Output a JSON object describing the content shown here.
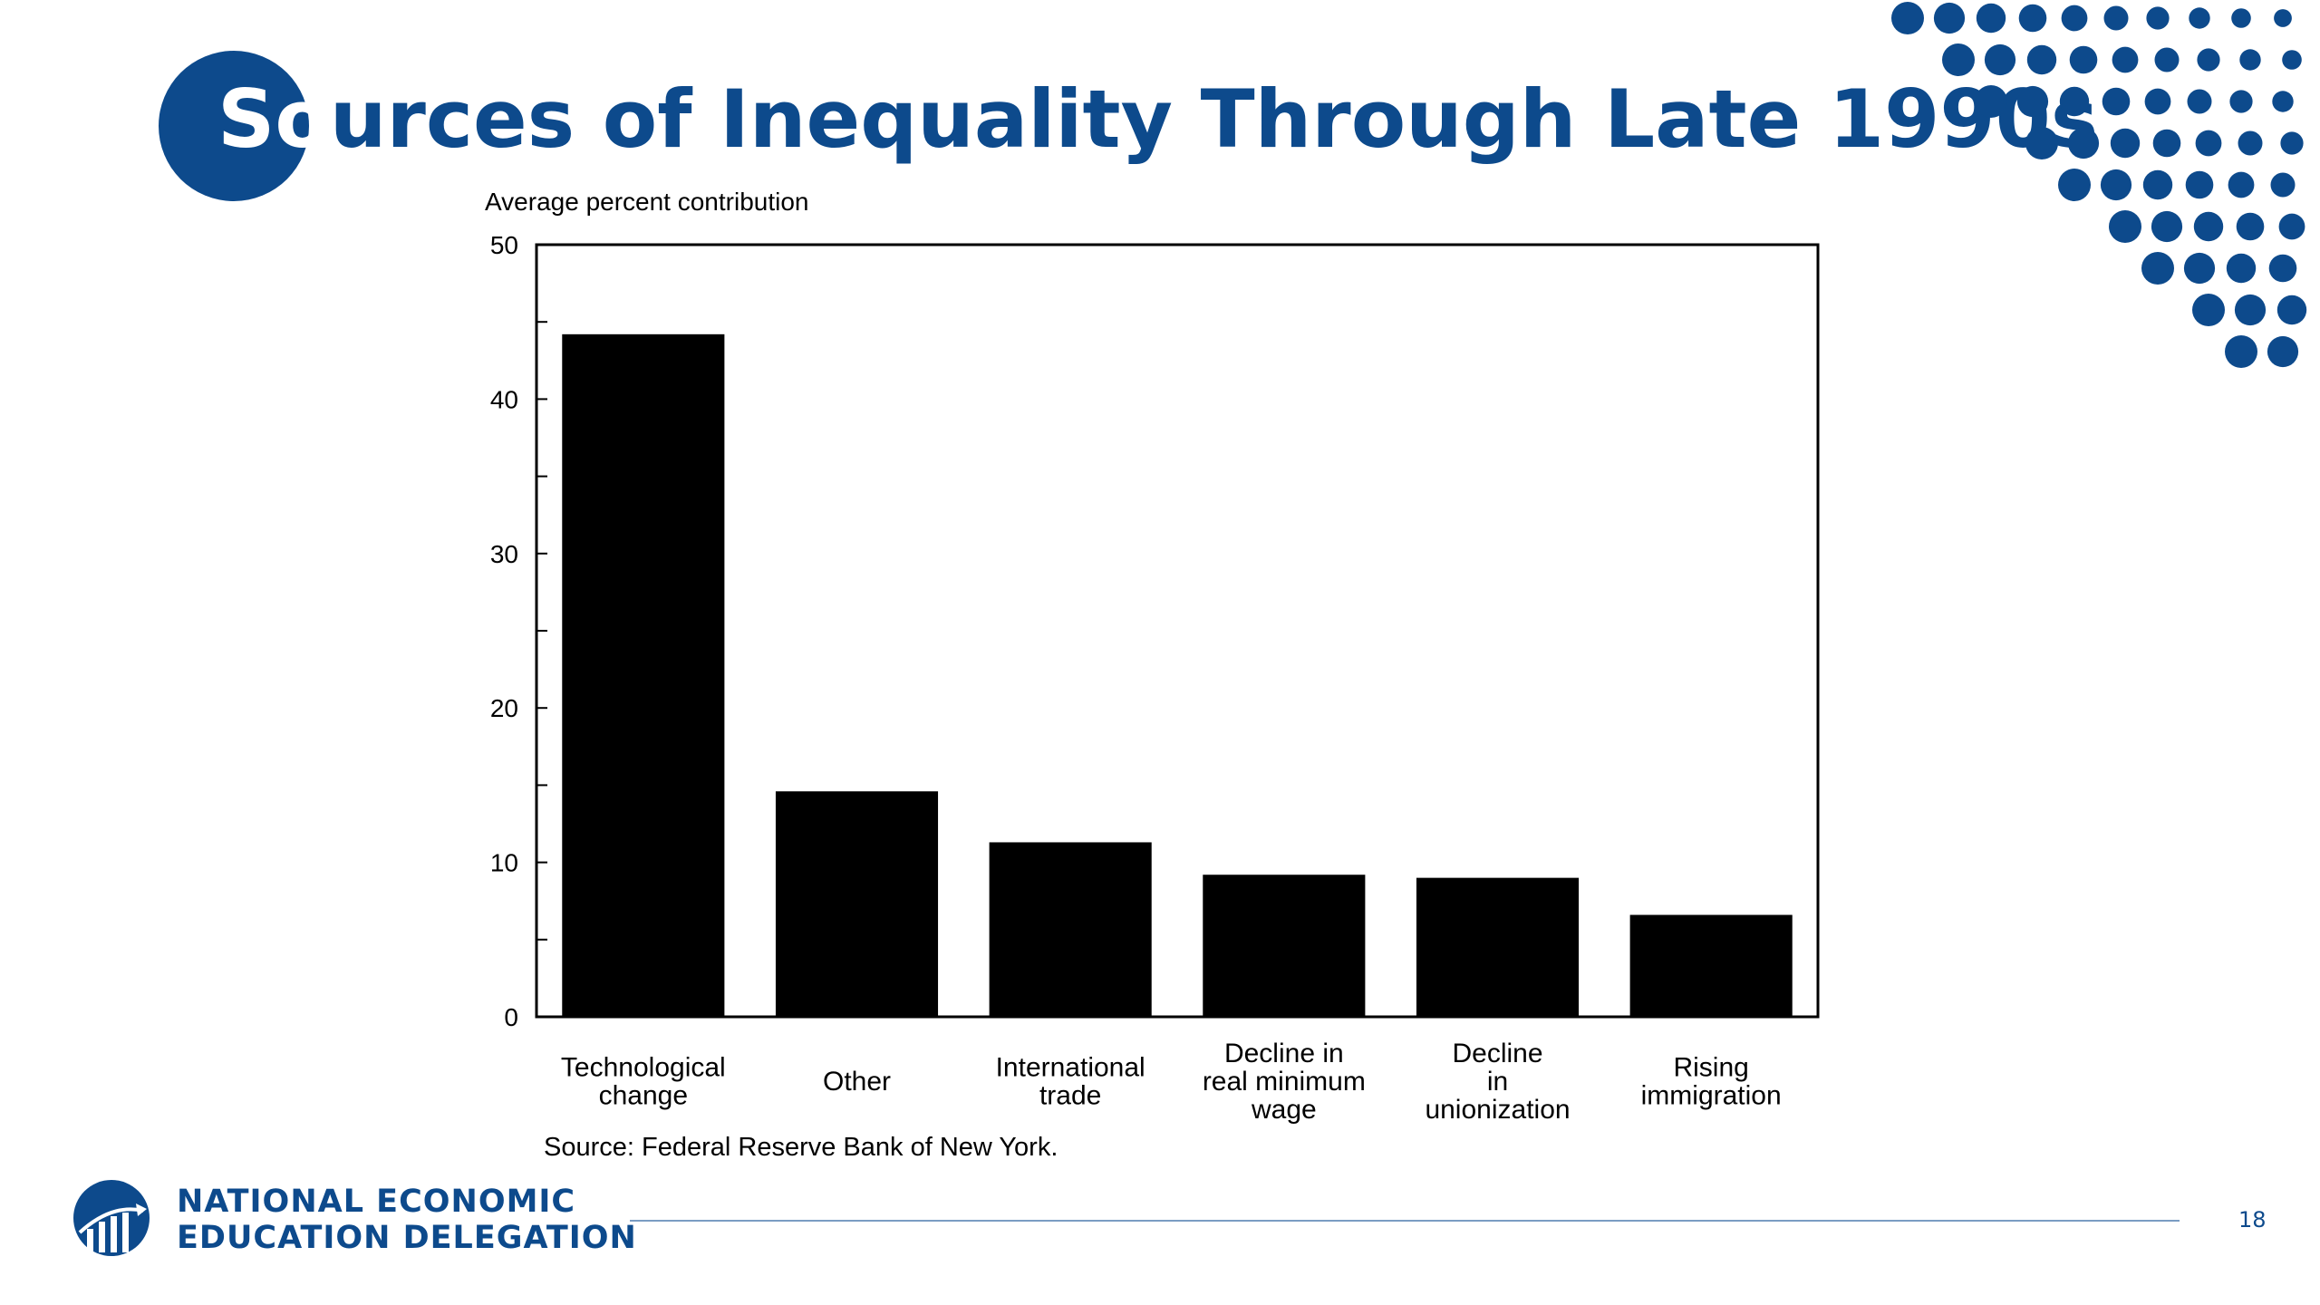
{
  "slide": {
    "title_lead": "So",
    "title_rest": "urces of Inequality Through Late 1990s",
    "page_number": "18",
    "brand_color": "#0d4a8c"
  },
  "footer": {
    "org_line1": "NATIONAL ECONOMIC",
    "org_line2": "EDUCATION DELEGATION",
    "logo_icon": "chart-in-globe-icon"
  },
  "chart_data": {
    "type": "bar",
    "ylabel": "Average percent contribution",
    "ylim": [
      0,
      50
    ],
    "yticks": [
      0,
      10,
      20,
      30,
      40,
      50
    ],
    "categories": [
      [
        "Technological",
        "change"
      ],
      [
        "Other"
      ],
      [
        "International",
        "trade"
      ],
      [
        "Decline in",
        "real minimum",
        "wage"
      ],
      [
        "Decline",
        "in",
        "unionization"
      ],
      [
        "Rising",
        "immigration"
      ]
    ],
    "values": [
      44.2,
      14.6,
      11.3,
      9.2,
      9.0,
      6.6
    ],
    "bar_color": "#000000",
    "grid": false,
    "source": "Source: Federal Reserve Bank of New York."
  }
}
